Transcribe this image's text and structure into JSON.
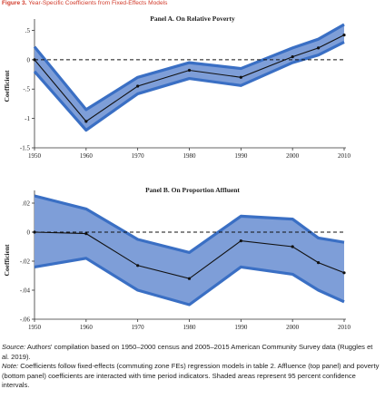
{
  "figure": {
    "number": "Figure 3.",
    "title": "Year-Specific Coefficients from Fixed-Effects Models"
  },
  "notes": {
    "source_label": "Source:",
    "source_text": "Authors' compilation based on 1950–2000 census and 2005–2015 American Community Survey data (Ruggles et al. 2019).",
    "note_label": "Note:",
    "note_text": "Coefficients follow fixed-effects (commuting zone FEs) regression models in table 2. Affluence (top panel) and poverty (bottom panel) coefficients are interacted with time period indicators. Shaded areas represent 95 percent confidence intervals."
  },
  "colors": {
    "band_fill": "#7e9ed8",
    "band_edge": "#3a6fc4",
    "line": "#111111",
    "title_accent": "#d13a2a"
  },
  "chart_data": [
    {
      "type": "line",
      "title": "Panel A. On Relative Poverty",
      "ylabel": "Coefficient",
      "xlabel": "",
      "xlim": [
        1950,
        2010
      ],
      "ylim": [
        -1.5,
        0.6
      ],
      "xticks": [
        1950,
        1960,
        1970,
        1980,
        1990,
        2000,
        2010
      ],
      "xtick_labels": [
        "1950",
        "1960",
        "1970",
        "1980",
        "1990",
        "2000",
        "2010"
      ],
      "yticks": [
        0.5,
        0,
        -0.5,
        -1,
        -1.5
      ],
      "ytick_labels": [
        ".5",
        "0",
        "-.5",
        "-1",
        "-1.5"
      ],
      "reference_line": 0,
      "x": [
        1950,
        1960,
        1970,
        1980,
        1990,
        2000,
        2005,
        2010
      ],
      "series": [
        {
          "values": [
            0.0,
            -1.05,
            -0.45,
            -0.18,
            -0.3,
            0.05,
            0.2,
            0.42
          ],
          "ci_lower": [
            -0.2,
            -1.2,
            -0.58,
            -0.32,
            -0.44,
            -0.05,
            0.08,
            0.3
          ],
          "ci_upper": [
            0.22,
            -0.85,
            -0.3,
            -0.05,
            -0.15,
            0.2,
            0.35,
            0.6
          ]
        }
      ]
    },
    {
      "type": "line",
      "title": "Panel B. On Proportion Affluent",
      "ylabel": "Coefficient",
      "xlabel": "",
      "xlim": [
        1950,
        2010
      ],
      "ylim": [
        -0.06,
        0.025
      ],
      "xticks": [
        1950,
        1960,
        1970,
        1980,
        1990,
        2000,
        2010
      ],
      "xtick_labels": [
        "1950",
        "1960",
        "1970",
        "1980",
        "1990",
        "2000",
        "2010"
      ],
      "yticks": [
        0.02,
        0,
        -0.02,
        -0.04,
        -0.06
      ],
      "ytick_labels": [
        ".02",
        "0",
        "-.02",
        "-.04",
        "-.06"
      ],
      "reference_line": 0,
      "x": [
        1950,
        1960,
        1970,
        1980,
        1990,
        2000,
        2005,
        2010
      ],
      "series": [
        {
          "values": [
            0.0,
            -0.001,
            -0.023,
            -0.032,
            -0.006,
            -0.01,
            -0.021,
            -0.028
          ],
          "ci_lower": [
            -0.024,
            -0.018,
            -0.04,
            -0.05,
            -0.024,
            -0.029,
            -0.04,
            -0.048
          ],
          "ci_upper": [
            0.025,
            0.016,
            -0.005,
            -0.014,
            0.011,
            0.009,
            -0.004,
            -0.007
          ]
        }
      ]
    }
  ]
}
